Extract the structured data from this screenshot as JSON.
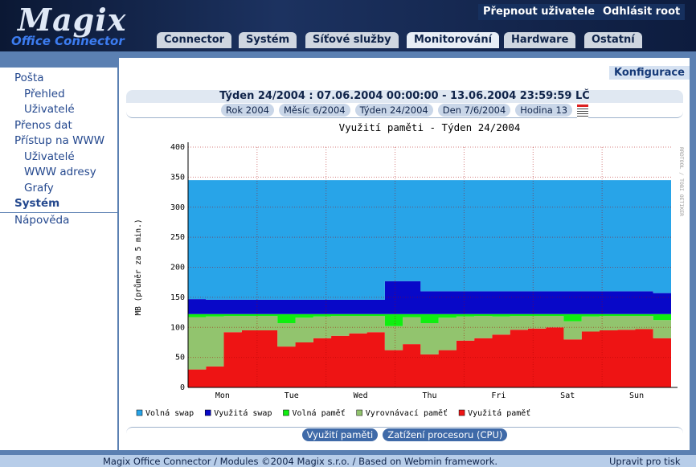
{
  "header": {
    "logo_title": "Magix",
    "logo_subtitle": "Office Connector",
    "user_buttons": [
      "Přepnout uživatele",
      "Odhlásit root"
    ],
    "tabs": [
      "Connector",
      "Systém",
      "Síťové služby",
      "Monitorování",
      "Hardware",
      "Ostatní"
    ],
    "active_tab": 3
  },
  "sidebar": {
    "items": [
      {
        "label": "Pošta",
        "level": 0
      },
      {
        "label": "Přehled",
        "level": 1
      },
      {
        "label": "Uživatelé",
        "level": 1
      },
      {
        "label": "Přenos dat",
        "level": 0
      },
      {
        "label": "Přístup na WWW",
        "level": 0
      },
      {
        "label": "Uživatelé",
        "level": 1
      },
      {
        "label": "WWW adresy",
        "level": 1
      },
      {
        "label": "Grafy",
        "level": 1
      },
      {
        "label": "Systém",
        "level": 0,
        "active": true
      },
      {
        "label": "Nápověda",
        "level": 0
      }
    ]
  },
  "content": {
    "config_button": "Konfigurace",
    "period": "Týden 24/2004 : 07.06.2004 00:00:00 - 13.06.2004 23:59:59 LČ",
    "nav": [
      "Rok 2004",
      "Měsíc 6/2004",
      "Týden 24/2004",
      "Den 7/6/2004",
      "Hodina 13"
    ],
    "bottom_buttons": [
      "Využití paměti",
      "Zatížení procesoru (CPU)"
    ]
  },
  "chart": {
    "type": "area",
    "stacked": true,
    "title": "Využití paměti - Týden 24/2004",
    "y_label": "MB (průměr za 5 min.)",
    "side_label": "RRDTOOL / TOBI OETIKER",
    "x_labels": [
      "Mon",
      "Tue",
      "Wed",
      "Thu",
      "Fri",
      "Sat",
      "Sun"
    ],
    "ylim": [
      0,
      400
    ],
    "yticks": [
      0,
      50,
      100,
      150,
      200,
      250,
      300,
      350,
      400
    ],
    "grid": true,
    "series": [
      {
        "name": "Volná swap",
        "color": "#28a4e8",
        "values": [
          198,
          199,
          199,
          199,
          199,
          199,
          199,
          199,
          199,
          199,
          199,
          168,
          168,
          185,
          185,
          185,
          185,
          185,
          185,
          185,
          185,
          185,
          185,
          185,
          185,
          185,
          188,
          188
        ]
      },
      {
        "name": "Využitá swap",
        "color": "#0808c8",
        "values": [
          25,
          24,
          24,
          24,
          24,
          24,
          24,
          24,
          24,
          24,
          24,
          55,
          55,
          38,
          38,
          38,
          38,
          38,
          38,
          38,
          38,
          38,
          38,
          38,
          38,
          38,
          35,
          35
        ]
      },
      {
        "name": "Volná paměť",
        "color": "#10ee10",
        "values": [
          5,
          4,
          3,
          3,
          3,
          15,
          6,
          4,
          3,
          3,
          3,
          20,
          5,
          15,
          6,
          4,
          3,
          4,
          3,
          3,
          3,
          12,
          4,
          3,
          3,
          3,
          10,
          4
        ]
      },
      {
        "name": "Vyrovnávací paměť",
        "color": "#92c46e",
        "values": [
          87,
          83,
          27,
          24,
          24,
          39,
          41,
          36,
          33,
          29,
          27,
          40,
          45,
          52,
          54,
          40,
          37,
          30,
          23,
          21,
          19,
          30,
          25,
          24,
          23,
          22,
          30,
          28
        ]
      },
      {
        "name": "Využitá paměť",
        "color": "#ee1414",
        "values": [
          30,
          35,
          92,
          95,
          95,
          68,
          75,
          82,
          86,
          90,
          92,
          62,
          72,
          55,
          62,
          78,
          82,
          88,
          96,
          98,
          100,
          80,
          93,
          95,
          96,
          97,
          82,
          90
        ]
      }
    ]
  },
  "footer": {
    "text": "Magix Office Connector / Modules ©2004 Magix s.r.o. / Based on Webmin framework.",
    "print": "Upravit pro tisk"
  }
}
